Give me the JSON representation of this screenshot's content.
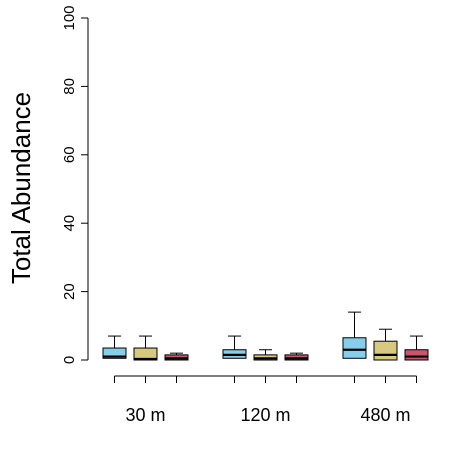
{
  "chart_data": {
    "type": "box",
    "ylabel": "Total Abundance",
    "xlabel": "",
    "title": "",
    "ylim": [
      0,
      100
    ],
    "yticks": [
      0,
      20,
      40,
      60,
      80,
      100
    ],
    "categories": [
      "30 m",
      "120 m",
      "480 m"
    ],
    "series_colors": [
      "#87CEEB",
      "#D8C980",
      "#C9566A"
    ],
    "groups": [
      {
        "label": "30 m",
        "boxes": [
          {
            "q1": 0.5,
            "median": 1.0,
            "q3": 3.5,
            "whisker_high": 7
          },
          {
            "q1": 0.0,
            "median": 0.3,
            "q3": 3.5,
            "whisker_high": 7
          },
          {
            "q1": 0.0,
            "median": 0.5,
            "q3": 1.5,
            "whisker_high": 2
          }
        ]
      },
      {
        "label": "120 m",
        "boxes": [
          {
            "q1": 0.5,
            "median": 1.5,
            "q3": 3.0,
            "whisker_high": 7
          },
          {
            "q1": 0.0,
            "median": 0.5,
            "q3": 1.5,
            "whisker_high": 3
          },
          {
            "q1": 0.0,
            "median": 0.5,
            "q3": 1.5,
            "whisker_high": 2
          }
        ]
      },
      {
        "label": "480 m",
        "boxes": [
          {
            "q1": 0.5,
            "median": 3.0,
            "q3": 6.5,
            "whisker_high": 14
          },
          {
            "q1": 0.0,
            "median": 1.5,
            "q3": 5.5,
            "whisker_high": 9
          },
          {
            "q1": 0.0,
            "median": 1.0,
            "q3": 3.0,
            "whisker_high": 7
          }
        ]
      }
    ]
  }
}
